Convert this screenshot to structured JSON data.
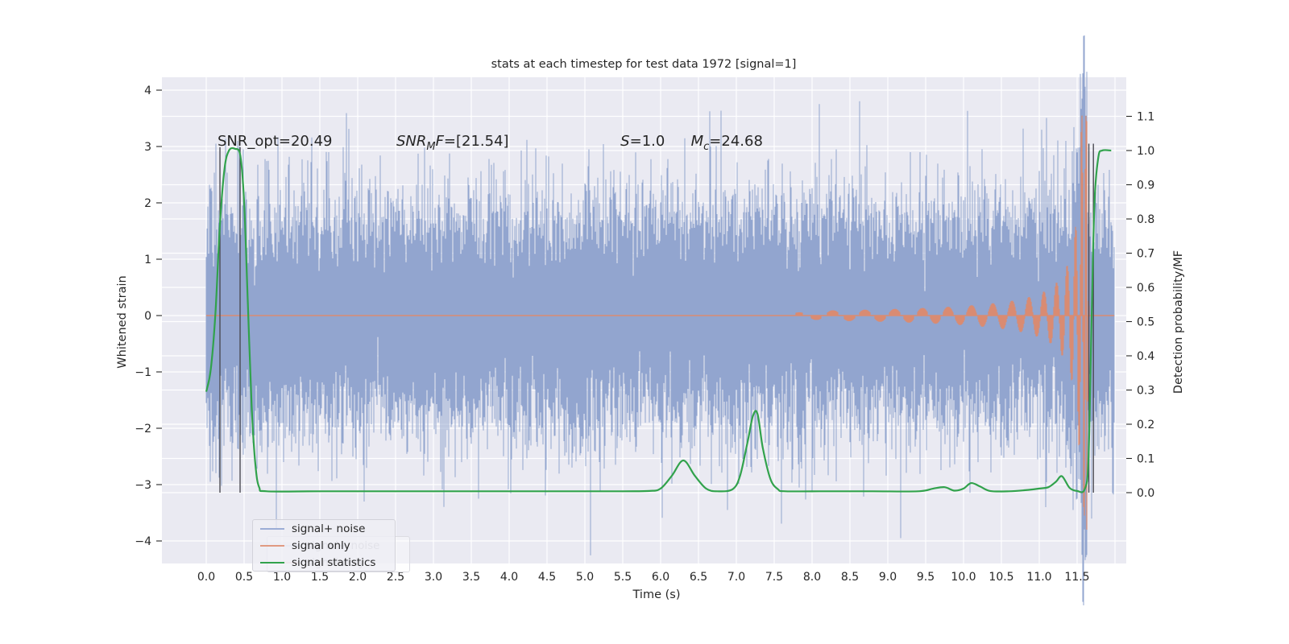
{
  "figure": {
    "title": "stats at each timestep for test data 1972 [signal=1]"
  },
  "colors": {
    "background": "#ffffff",
    "axes_bg": "#eaeaf2",
    "grid": "#ffffff",
    "noise_blue": "#92a5cf",
    "signal_orange": "#d98b72",
    "stats_green": "#31a24c",
    "marker_gray": "#4b4b53",
    "text": "#262626",
    "legend_blue": "#9cadd6",
    "legend_orange": "#e09a81",
    "legend_green": "#31a24c"
  },
  "chart_data": {
    "type": "line",
    "title": "stats at each timestep for test data 1972 [signal=1]",
    "xlabel": "Time (s)",
    "ylabel_left": "Whitened strain",
    "ylabel_right": "Detection probability/MF",
    "xlim": [
      -0.585,
      12.15
    ],
    "ylim_left": [
      -4.4,
      4.23
    ],
    "ylim_right": [
      -0.207,
      1.214
    ],
    "xticks": [
      0.0,
      0.5,
      1.0,
      1.5,
      2.0,
      2.5,
      3.0,
      3.5,
      4.0,
      4.5,
      5.0,
      5.5,
      6.0,
      6.5,
      7.0,
      7.5,
      8.0,
      8.5,
      9.0,
      9.5,
      10.0,
      10.5,
      11.0,
      11.5
    ],
    "yticks_left": [
      -4,
      -3,
      -2,
      -1,
      0,
      1,
      2,
      3,
      4
    ],
    "yticks_right": [
      0.0,
      0.1,
      0.2,
      0.3,
      0.4,
      0.5,
      0.6,
      0.7,
      0.8,
      0.9,
      1.0,
      1.1
    ],
    "grid": true,
    "legend_position": "lower left",
    "annotations": [
      {
        "x_t": 0.149,
        "v": 3.1,
        "parts": [
          {
            "text": "SNR_opt=20.49"
          }
        ]
      },
      {
        "x_t": 2.51,
        "v": 3.1,
        "parts": [
          {
            "text": "SNR",
            "italic": true
          },
          {
            "text": "M",
            "italic": true,
            "sub": true
          },
          {
            "text": "F",
            "italic": true
          },
          {
            "text": "=[21.54]"
          }
        ]
      },
      {
        "x_t": 5.47,
        "v": 3.1,
        "parts": [
          {
            "text": "S",
            "italic": true
          },
          {
            "text": "=1.0"
          }
        ]
      },
      {
        "x_t": 6.4,
        "v": 3.1,
        "parts": [
          {
            "text": "M",
            "italic": true
          },
          {
            "text": "c",
            "italic": true,
            "sub": true
          },
          {
            "text": "=24.68"
          }
        ]
      }
    ],
    "vlines": [
      {
        "t": 0.181,
        "v_top": 2.99,
        "p_bottom": 0.0
      },
      {
        "t": 0.447,
        "v_top": 2.99,
        "p_bottom": 0.0
      },
      {
        "t": 11.655,
        "v_top": 3.05,
        "p_bottom": 0.0
      },
      {
        "t": 11.715,
        "v_top": 3.05,
        "p_bottom": 0.0
      }
    ],
    "series": {
      "signal_plus_noise": {
        "name": "signal+ noise",
        "t_range": [
          0,
          11.99
        ],
        "noise_sigma": 0.95,
        "samples_per_column": 20,
        "forced_spikes": [
          {
            "t": 0.05,
            "v": -2.95
          },
          {
            "t": 0.13,
            "v": 3.05
          },
          {
            "t": 0.42,
            "v": 3.1
          },
          {
            "t": 1.62,
            "v": 2.9
          },
          {
            "t": 2.08,
            "v": -3.3
          },
          {
            "t": 3.6,
            "v": -3.25
          },
          {
            "t": 5.05,
            "v": 2.95
          },
          {
            "t": 6.88,
            "v": -3.45
          },
          {
            "t": 8.32,
            "v": 2.95
          },
          {
            "t": 9.17,
            "v": -3.95
          },
          {
            "t": 9.3,
            "v": 2.9
          },
          {
            "t": 11.08,
            "v": -3.4
          },
          {
            "t": 11.35,
            "v": 3.1
          },
          {
            "t": 11.45,
            "v": -3.45
          },
          {
            "t": 11.56,
            "v": 3.85
          },
          {
            "t": 11.63,
            "v": -4.25
          }
        ]
      },
      "signal_only": {
        "name": "signal only",
        "flat_value": 0,
        "chirp": {
          "t_visible_from": 7.0,
          "t_merger": 11.63,
          "peak_amplitude": 3.55,
          "post_merger_dip": -3.8
        }
      },
      "signal_statistics": {
        "name": "signal statistics",
        "points": [
          [
            0,
            0.295
          ],
          [
            0.06,
            0.36
          ],
          [
            0.12,
            0.52
          ],
          [
            0.18,
            0.78
          ],
          [
            0.24,
            0.945
          ],
          [
            0.3,
            1.0
          ],
          [
            0.38,
            1.005
          ],
          [
            0.45,
            0.985
          ],
          [
            0.5,
            0.85
          ],
          [
            0.55,
            0.55
          ],
          [
            0.6,
            0.25
          ],
          [
            0.65,
            0.08
          ],
          [
            0.7,
            0.015
          ],
          [
            0.8,
            0.004
          ],
          [
            1.5,
            0.004
          ],
          [
            2.5,
            0.004
          ],
          [
            3.5,
            0.004
          ],
          [
            4.5,
            0.004
          ],
          [
            5.5,
            0.004
          ],
          [
            5.85,
            0.005
          ],
          [
            6.0,
            0.012
          ],
          [
            6.15,
            0.05
          ],
          [
            6.3,
            0.094
          ],
          [
            6.45,
            0.05
          ],
          [
            6.6,
            0.012
          ],
          [
            6.75,
            0.004
          ],
          [
            6.95,
            0.01
          ],
          [
            7.05,
            0.05
          ],
          [
            7.15,
            0.15
          ],
          [
            7.22,
            0.225
          ],
          [
            7.28,
            0.23
          ],
          [
            7.35,
            0.13
          ],
          [
            7.45,
            0.04
          ],
          [
            7.55,
            0.01
          ],
          [
            7.65,
            0.004
          ],
          [
            8.2,
            0.004
          ],
          [
            8.8,
            0.004
          ],
          [
            9.4,
            0.004
          ],
          [
            9.6,
            0.012
          ],
          [
            9.75,
            0.016
          ],
          [
            9.88,
            0.006
          ],
          [
            10.0,
            0.012
          ],
          [
            10.1,
            0.028
          ],
          [
            10.22,
            0.018
          ],
          [
            10.35,
            0.005
          ],
          [
            10.6,
            0.004
          ],
          [
            10.85,
            0.008
          ],
          [
            11.0,
            0.012
          ],
          [
            11.12,
            0.016
          ],
          [
            11.22,
            0.032
          ],
          [
            11.3,
            0.048
          ],
          [
            11.4,
            0.014
          ],
          [
            11.5,
            0.005
          ],
          [
            11.6,
            0.01
          ],
          [
            11.65,
            0.1
          ],
          [
            11.69,
            0.5
          ],
          [
            11.73,
            0.85
          ],
          [
            11.78,
            0.98
          ],
          [
            11.83,
            1.0
          ],
          [
            11.95,
            1.0
          ]
        ]
      }
    }
  },
  "legend": {
    "entries": [
      {
        "label": "signal+ noise",
        "color_key": "legend_blue"
      },
      {
        "label": "signal only",
        "color_key": "legend_orange"
      },
      {
        "label": "signal statistics",
        "color_key": "legend_green"
      }
    ],
    "ghost_entries": [
      {
        "label": "signal+ noise",
        "color_key": "legend_blue"
      },
      {
        "label": "signal only",
        "color_key": "legend_orange"
      }
    ]
  }
}
